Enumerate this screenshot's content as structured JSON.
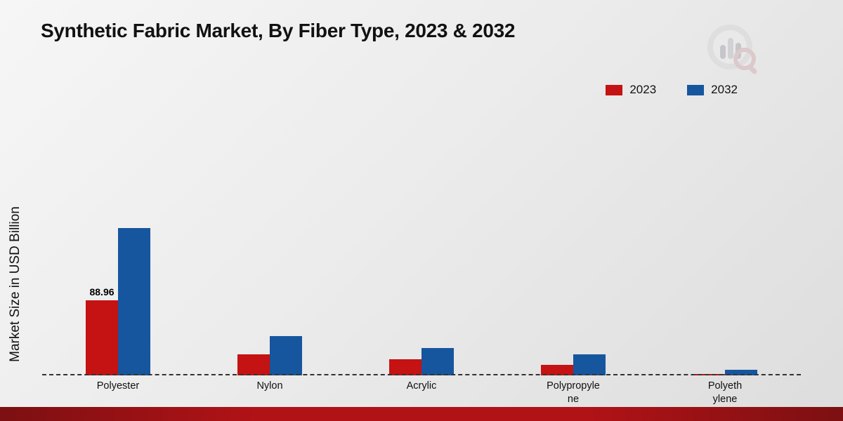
{
  "chart_data": {
    "type": "bar",
    "title": "Synthetic Fabric Market, By Fiber Type, 2023 & 2032",
    "ylabel": "Market Size in USD Billion",
    "xlabel": "",
    "categories": [
      "Polyester",
      "Nylon",
      "Acrylic",
      "Polypropyle\nne",
      "Polyeth\nylene"
    ],
    "series": [
      {
        "name": "2023",
        "color": "#c51212",
        "values": [
          88.96,
          24.9,
          19.1,
          12.5,
          1.8
        ]
      },
      {
        "name": "2032",
        "color": "#16569e",
        "values": [
          174.6,
          46.5,
          32.4,
          25.0,
          6.6
        ]
      }
    ],
    "annotations": [
      {
        "series_index": 0,
        "category_index": 0,
        "text": "88.96"
      }
    ],
    "ylim": [
      0,
      190
    ],
    "legend_position": "top-right",
    "grid": false,
    "baseline_style": "dashed"
  },
  "branding": {
    "logo": "bar-chart-magnifier-logo"
  },
  "footer": {
    "bar_color": "#a31015"
  }
}
